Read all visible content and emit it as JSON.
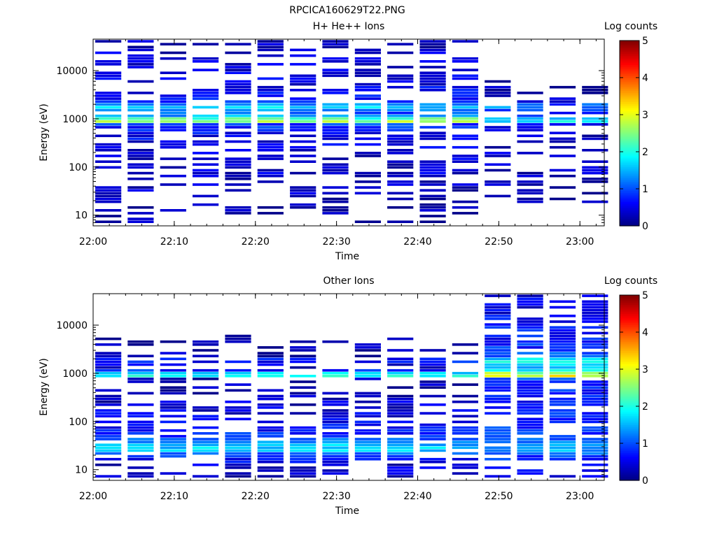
{
  "title": "RPCICA160629T22.PNG",
  "chart_data": [
    {
      "type": "heatmap",
      "title": "H+ He++ Ions",
      "xlabel": "Time",
      "ylabel": "Energy (eV)",
      "x_ticks": [
        "22:00",
        "22:10",
        "22:20",
        "22:30",
        "22:40",
        "22:50",
        "23:00"
      ],
      "x_range": [
        "22:00",
        "23:03"
      ],
      "y_scale": "log",
      "y_ticks": [
        "10",
        "100",
        "1000",
        "10000"
      ],
      "ylim": [
        6,
        45000
      ],
      "colorbar": {
        "label": "Log counts",
        "ticks": [
          "0",
          "1",
          "2",
          "3",
          "4",
          "5"
        ],
        "range": [
          0,
          5
        ]
      },
      "time_columns": [
        "22:01",
        "22:05",
        "22:09",
        "22:13",
        "22:17",
        "22:21",
        "22:25",
        "22:29",
        "22:33",
        "22:37",
        "22:41",
        "22:45",
        "22:49",
        "22:53",
        "22:57",
        "23:01"
      ],
      "energy_profile": {
        "log_energy": [
          0.9,
          1.1,
          1.3,
          1.5,
          1.7,
          1.9,
          2.1,
          2.3,
          2.5,
          2.7,
          2.9,
          2.93,
          3.0,
          3.1,
          3.22,
          3.26,
          3.35,
          3.5,
          3.7,
          3.9,
          4.1,
          4.3,
          4.5,
          4.65
        ],
        "level_before_22_49": [
          0.2,
          0.2,
          0.2,
          0.3,
          0.3,
          0.4,
          0.4,
          0.4,
          0.5,
          0.6,
          0.9,
          2.7,
          2.2,
          0.9,
          1.6,
          1.8,
          0.7,
          0.6,
          0.5,
          0.5,
          0.4,
          0.4,
          0.3,
          0.3
        ],
        "level_after_22_49": [
          0.1,
          0.1,
          0.2,
          0.2,
          0.3,
          0.3,
          0.3,
          0.3,
          0.3,
          0.4,
          0.5,
          1.8,
          1.5,
          0.4,
          1.2,
          1.4,
          0.3,
          0.2,
          0.2,
          0.1,
          0.1,
          0.1,
          0.1,
          0.0
        ]
      }
    },
    {
      "type": "heatmap",
      "title": "Other Ions",
      "xlabel": "Time",
      "ylabel": "Energy (eV)",
      "x_ticks": [
        "22:00",
        "22:10",
        "22:20",
        "22:30",
        "22:40",
        "22:50",
        "23:00"
      ],
      "x_range": [
        "22:00",
        "23:03"
      ],
      "y_scale": "log",
      "y_ticks": [
        "10",
        "100",
        "1000",
        "10000"
      ],
      "ylim": [
        6,
        45000
      ],
      "colorbar": {
        "label": "Log counts",
        "ticks": [
          "0",
          "1",
          "2",
          "3",
          "4",
          "5"
        ],
        "range": [
          0,
          5
        ]
      },
      "time_columns": [
        "22:01",
        "22:05",
        "22:09",
        "22:13",
        "22:17",
        "22:21",
        "22:25",
        "22:29",
        "22:33",
        "22:37",
        "22:41",
        "22:45",
        "22:49",
        "22:53",
        "22:57",
        "23:01"
      ],
      "energy_profile": {
        "log_energy": [
          0.9,
          1.1,
          1.3,
          1.4,
          1.5,
          1.6,
          1.7,
          1.9,
          2.1,
          2.3,
          2.5,
          2.7,
          2.9,
          2.93,
          3.0,
          3.1,
          3.22,
          3.26,
          3.35,
          3.5,
          3.7,
          3.9,
          4.1,
          4.3,
          4.5,
          4.65
        ],
        "level_before_22_49": [
          0.3,
          0.4,
          0.9,
          1.7,
          1.6,
          1.2,
          0.8,
          0.6,
          0.5,
          0.4,
          0.3,
          0.2,
          0.2,
          1.9,
          1.6,
          0.2,
          0.6,
          0.8,
          0.2,
          0.2,
          0.2,
          0.1,
          0.1,
          0.1,
          0.1,
          0.1
        ],
        "level_after_22_49": [
          0.5,
          0.6,
          0.9,
          1.5,
          1.5,
          1.2,
          0.9,
          0.8,
          0.8,
          0.7,
          0.7,
          0.8,
          1.0,
          3.1,
          2.6,
          1.4,
          2.0,
          2.2,
          1.0,
          0.8,
          0.7,
          0.7,
          0.6,
          0.5,
          0.5,
          0.4
        ]
      }
    }
  ]
}
